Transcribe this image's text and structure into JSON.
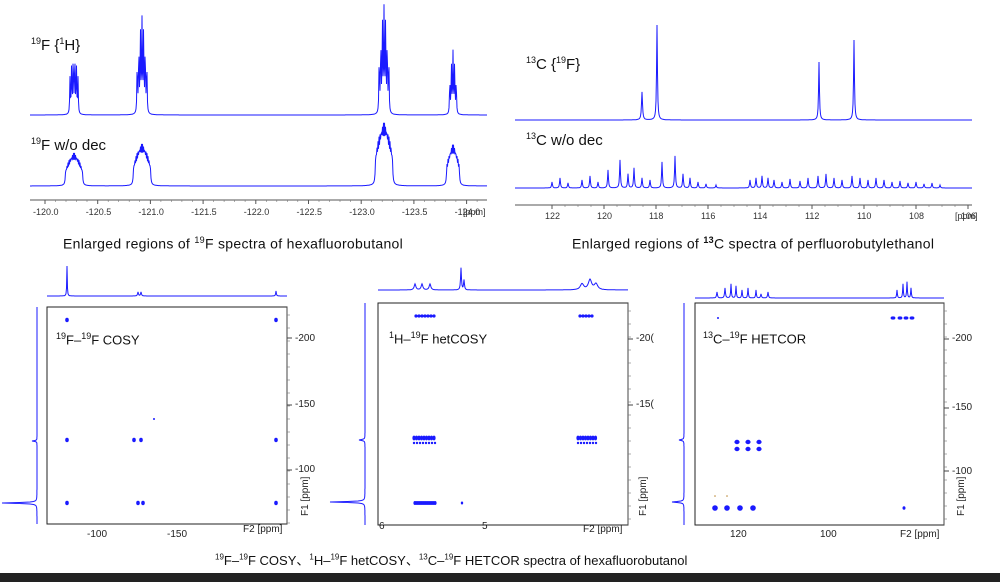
{
  "top_left": {
    "label_decoupled_sup": "19",
    "label_decoupled_main": "F {",
    "label_decoupled_sup2": "1",
    "label_decoupled_end": "H}",
    "label_nodec_sup": "19",
    "label_nodec_main": "F w/o dec",
    "axis_ticks": [
      "-120.0",
      "-120.5",
      "-121.0",
      "-121.5",
      "-122.0",
      "-122.5",
      "-123.0",
      "-123.5",
      "-124.0"
    ],
    "axis_unit": "[ppm]",
    "caption_pre": "Enlarged regions of ",
    "caption_sup": "19",
    "caption_post": "F spectra of hexafluorobutanol"
  },
  "top_right": {
    "label_decoupled_sup": "13",
    "label_decoupled_main": "C {",
    "label_decoupled_sup2": "19",
    "label_decoupled_end": "F}",
    "label_nodec_sup": "13",
    "label_nodec_main": "C w/o dec",
    "axis_ticks": [
      "122",
      "120",
      "118",
      "116",
      "114",
      "112",
      "110",
      "108",
      "106"
    ],
    "axis_unit": "[ppm]",
    "caption_pre": "Enlarged regions of ",
    "caption_sup": "13",
    "caption_post": "C spectra of perfluorobutylethanol"
  },
  "panels": {
    "cosy": {
      "label_sup1": "19",
      "label_mid": "F–",
      "label_sup2": "19",
      "label_end": "F COSY",
      "f1_ticks": [
        "-200",
        "-150",
        "-100"
      ],
      "f2_ticks": [
        "-100",
        "-150"
      ],
      "f1_unit": "F1 [ppm]",
      "f2_unit": "F2 [ppm]"
    },
    "hetcosy": {
      "label_sup1": "1",
      "label_mid": "H–",
      "label_sup2": "19",
      "label_end": "F hetCOSY",
      "f1_ticks": [
        "-20(",
        "-15("
      ],
      "f2_ticks": [
        "6",
        "5"
      ],
      "f1_unit": "F1 [ppm]",
      "f2_unit": "F2 [ppm]"
    },
    "hetcor": {
      "label_sup1": "13",
      "label_mid": "C–",
      "label_sup2": "19",
      "label_end": "F HETCOR",
      "f1_ticks": [
        "-200",
        "-150",
        "-100"
      ],
      "f2_ticks": [
        "120",
        "100"
      ],
      "f1_unit": "F1 [ppm]",
      "f2_unit": "F2 [ppm]"
    }
  },
  "bottom_caption": {
    "sup1": "19",
    "t1": "F–",
    "sup2": "19",
    "t2": "F COSY、",
    "sup3": "1",
    "t3": "H–",
    "sup4": "19",
    "t4": "F hetCOSY、",
    "sup5": "13",
    "t5": "C–",
    "sup6": "19",
    "t6": "F HETCOR spectra of hexafluorobutanol"
  },
  "colors": {
    "spectrum": "#1a1aff",
    "axis": "#444444",
    "contour": "#1a1aff"
  }
}
